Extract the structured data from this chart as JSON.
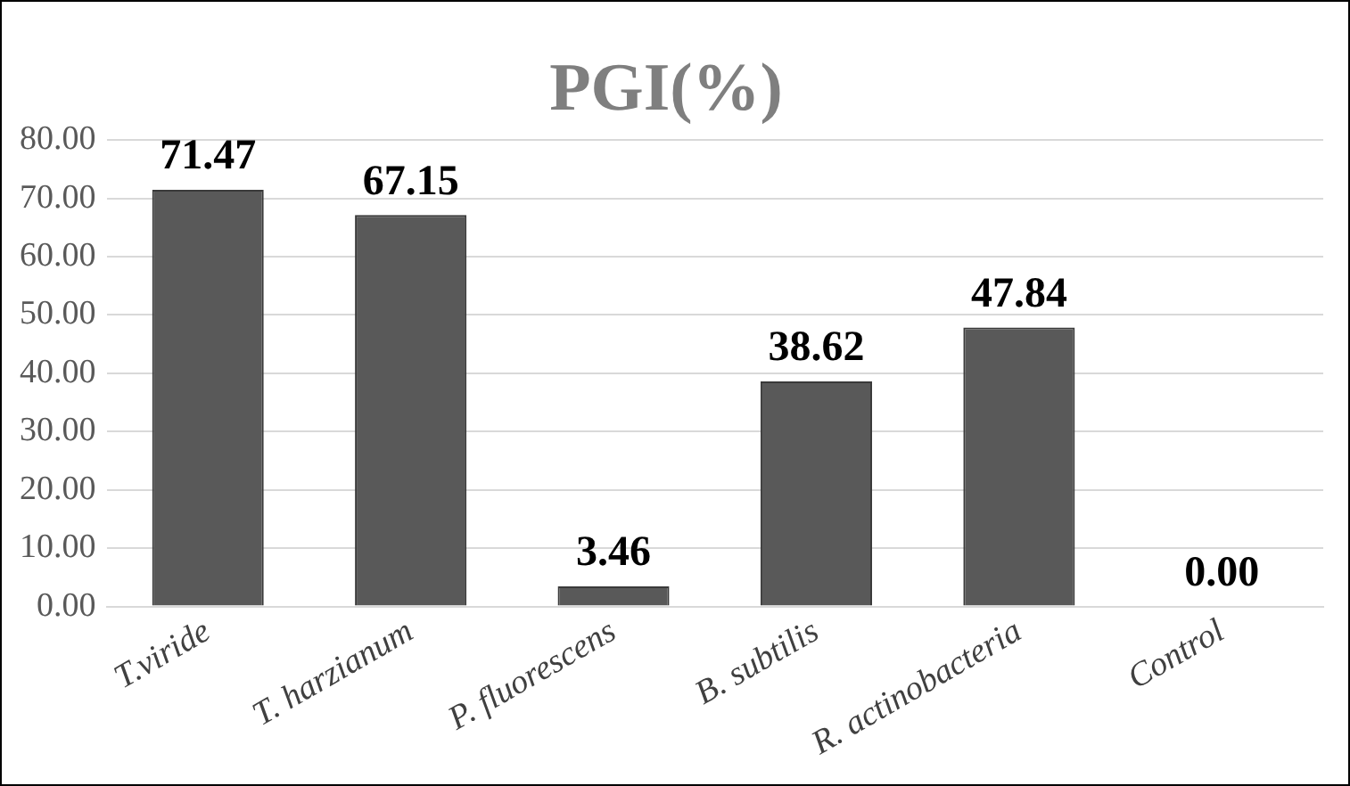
{
  "chart_data": {
    "type": "bar",
    "title": "PGI(%)",
    "categories": [
      "T.viride",
      "T. harzianum",
      "P. fluorescens",
      "B. subtilis",
      "R. actinobacteria",
      "Control"
    ],
    "values": [
      71.47,
      67.15,
      3.46,
      38.62,
      47.84,
      0.0
    ],
    "value_labels": [
      "71.47",
      "67.15",
      "3.46",
      "38.62",
      "47.84",
      "0.00"
    ],
    "color": "#595959",
    "ylim": [
      0,
      80
    ],
    "yticks": [
      {
        "value": 0,
        "label": "0.00"
      },
      {
        "value": 10,
        "label": "10.00"
      },
      {
        "value": 20,
        "label": "20.00"
      },
      {
        "value": 30,
        "label": "30.00"
      },
      {
        "value": 40,
        "label": "40.00"
      },
      {
        "value": 50,
        "label": "50.00"
      },
      {
        "value": 60,
        "label": "60.00"
      },
      {
        "value": 70,
        "label": "70.00"
      },
      {
        "value": 80,
        "label": "80.00"
      }
    ],
    "grid": "y",
    "legend": false
  }
}
